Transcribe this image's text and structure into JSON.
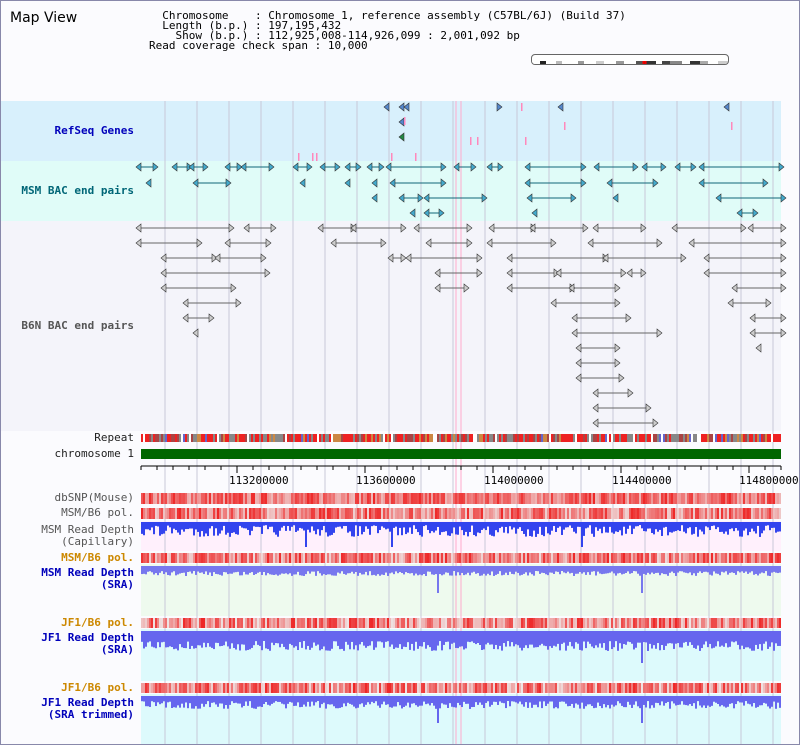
{
  "window": {
    "title": "Map View"
  },
  "header": {
    "chromosome_label": "Chromosome",
    "chromosome_value": "Chromosome 1, reference assembly (C57BL/6J) (Build 37)",
    "length_label": "Length (b.p.)",
    "length_value": "197,195,432",
    "show_label": "Show (b.p.)",
    "show_value": "112,925,008-114,926,099 : 2,001,092 bp",
    "coverage_label": "Read coverage check span",
    "coverage_value": "10,000"
  },
  "tracks": {
    "refseq_label": "RefSeq Genes",
    "msm_bac_label": "MSM BAC end pairs",
    "b6n_bac_label": "B6N BAC end pairs",
    "repeat_label": "Repeat",
    "chromosome_label": "chromosome 1",
    "dbsnp_label": "dbSNP(Mouse)",
    "msm_b6_pol_label": "MSM/B6 pol.",
    "msm_read_depth_cap_label_1": "MSM Read Depth",
    "msm_read_depth_cap_label_2": "(Capillary)",
    "msm_b6_pol2_label": "MSM/B6 pol.",
    "msm_read_depth_sra_label_1": "MSM Read Depth",
    "msm_read_depth_sra_label_2": "(SRA)",
    "jf1_b6_pol_label": "JF1/B6 pol.",
    "jf1_read_depth_sra_label_1": "JF1 Read Depth",
    "jf1_read_depth_sra_label_2": "(SRA)",
    "jf1_b6_pol2_label": "JF1/B6 pol.",
    "jf1_read_depth_trim_label_1": "JF1 Read Depth",
    "jf1_read_depth_trim_label_2": "(SRA trimmed)"
  },
  "axis": {
    "ticks": [
      "113200000",
      "113600000",
      "114000000",
      "114400000",
      "114800000"
    ]
  },
  "colors": {
    "refseq_bg": "#d8f0fc",
    "msm_bg": "#e0fcf8",
    "b6n_bg": "#f4f4fa",
    "chromosome_bar": "#006600",
    "snp_red": "#ee2222",
    "depth_blue": "#3344ee",
    "msm_depth_bg": "#fff0fc",
    "sra_bg": "#eefaee",
    "jf1_bg": "#ddfafc"
  }
}
